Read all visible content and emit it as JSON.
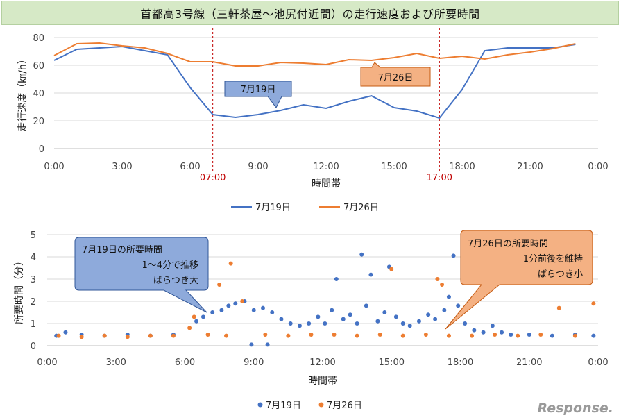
{
  "title": "首都高3号線（三軒茶屋〜池尻付近間）の走行速度および所要時間",
  "watermark": "Response.",
  "colors": {
    "jul19": "#4472c4",
    "jul26": "#ed7d31",
    "marker": "#c00000",
    "callout_blue": "#8eaadb",
    "callout_orange": "#f4b183"
  },
  "chart_data": [
    {
      "type": "line",
      "xlabel": "時間帯",
      "ylabel": "走行速度（㎞/h）",
      "ylim": [
        0,
        80
      ],
      "yticks": [
        "0",
        "20",
        "40",
        "60",
        "80"
      ],
      "xlim": [
        0,
        24
      ],
      "xticks": [
        "0:00",
        "3:00",
        "6:00",
        "9:00",
        "12:00",
        "15:00",
        "18:00",
        "21:00",
        "0:00"
      ],
      "grid": true,
      "legend": "bottom",
      "markers": [
        {
          "x": 7,
          "label": "07:00"
        },
        {
          "x": 17,
          "label": "17:00"
        }
      ],
      "x": [
        0,
        1,
        2,
        3,
        4,
        5,
        6,
        7,
        8,
        9,
        10,
        11,
        12,
        13,
        14,
        15,
        16,
        17,
        18,
        19,
        20,
        21,
        22,
        23
      ],
      "series": [
        {
          "name": "7月19日",
          "values": [
            63.5,
            71.5,
            72.5,
            73.5,
            70.5,
            67.5,
            44,
            24.5,
            22.5,
            24.5,
            27.5,
            31.5,
            29,
            34,
            38,
            29.5,
            27,
            22,
            42.5,
            70.5,
            72.5,
            72.5,
            72.5,
            75
          ]
        },
        {
          "name": "7月26日",
          "values": [
            67,
            75.5,
            76,
            74,
            72.5,
            68.5,
            62.5,
            62.5,
            59.5,
            59.5,
            62,
            61.5,
            60.5,
            64,
            63.5,
            65.5,
            68.5,
            65,
            66.5,
            64.5,
            67.5,
            69.5,
            72,
            75.5
          ]
        }
      ],
      "callouts": [
        {
          "text": "7月19日",
          "series": 0
        },
        {
          "text": "7月26日",
          "series": 1
        }
      ]
    },
    {
      "type": "scatter",
      "xlabel": "時間帯",
      "ylabel": "所要時間（分）",
      "ylim": [
        0,
        5
      ],
      "yticks": [
        "0",
        "1",
        "2",
        "3",
        "4",
        "5"
      ],
      "xlim": [
        0,
        24
      ],
      "xticks": [
        "0:00",
        "3:00",
        "6:00",
        "9:00",
        "12:00",
        "15:00",
        "18:00",
        "21:00",
        "0:00"
      ],
      "grid": true,
      "legend": "bottom",
      "series": [
        {
          "name": "7月19日",
          "points": [
            [
              0.4,
              0.45
            ],
            [
              0.8,
              0.6
            ],
            [
              1.5,
              0.5
            ],
            [
              2.5,
              0.45
            ],
            [
              3.5,
              0.5
            ],
            [
              4.5,
              0.45
            ],
            [
              5.5,
              0.5
            ],
            [
              6.5,
              1.1
            ],
            [
              6.8,
              1.3
            ],
            [
              7.2,
              1.5
            ],
            [
              7.6,
              1.6
            ],
            [
              7.9,
              1.8
            ],
            [
              8.2,
              1.9
            ],
            [
              8.6,
              2.0
            ],
            [
              8.9,
              0.05
            ],
            [
              9.0,
              1.6
            ],
            [
              9.4,
              1.7
            ],
            [
              9.6,
              0.05
            ],
            [
              9.8,
              1.5
            ],
            [
              10.2,
              1.2
            ],
            [
              10.6,
              1.0
            ],
            [
              11.0,
              0.9
            ],
            [
              11.4,
              1.0
            ],
            [
              11.8,
              1.3
            ],
            [
              12.1,
              1.0
            ],
            [
              12.4,
              1.6
            ],
            [
              12.6,
              3.0
            ],
            [
              12.9,
              1.2
            ],
            [
              13.2,
              1.4
            ],
            [
              13.5,
              1.0
            ],
            [
              13.7,
              4.1
            ],
            [
              13.9,
              1.8
            ],
            [
              14.1,
              3.2
            ],
            [
              14.4,
              1.1
            ],
            [
              14.7,
              1.5
            ],
            [
              14.9,
              3.55
            ],
            [
              15.2,
              1.3
            ],
            [
              15.5,
              1.0
            ],
            [
              15.8,
              0.9
            ],
            [
              16.2,
              1.1
            ],
            [
              16.6,
              1.4
            ],
            [
              16.9,
              1.2
            ],
            [
              17.3,
              1.6
            ],
            [
              17.5,
              2.2
            ],
            [
              17.7,
              4.05
            ],
            [
              17.9,
              1.8
            ],
            [
              18.2,
              1.0
            ],
            [
              18.6,
              0.7
            ],
            [
              19.0,
              0.6
            ],
            [
              19.4,
              0.9
            ],
            [
              19.8,
              0.6
            ],
            [
              20.2,
              0.5
            ],
            [
              21.0,
              0.5
            ],
            [
              22.0,
              0.45
            ],
            [
              23.0,
              0.5
            ],
            [
              23.8,
              0.45
            ]
          ]
        },
        {
          "name": "7月26日",
          "points": [
            [
              0.5,
              0.45
            ],
            [
              1.5,
              0.4
            ],
            [
              2.5,
              0.45
            ],
            [
              3.5,
              0.4
            ],
            [
              4.5,
              0.45
            ],
            [
              5.5,
              0.45
            ],
            [
              6.2,
              0.8
            ],
            [
              6.4,
              1.3
            ],
            [
              7.0,
              0.5
            ],
            [
              7.5,
              2.75
            ],
            [
              7.8,
              0.45
            ],
            [
              8.0,
              3.7
            ],
            [
              8.5,
              2.0
            ],
            [
              9.5,
              0.5
            ],
            [
              10.5,
              0.45
            ],
            [
              11.5,
              0.5
            ],
            [
              12.5,
              0.5
            ],
            [
              13.5,
              0.45
            ],
            [
              14.5,
              0.5
            ],
            [
              15.0,
              3.45
            ],
            [
              15.5,
              0.45
            ],
            [
              16.5,
              0.5
            ],
            [
              17.0,
              3.0
            ],
            [
              17.2,
              2.75
            ],
            [
              17.5,
              0.45
            ],
            [
              18.5,
              0.45
            ],
            [
              19.5,
              0.5
            ],
            [
              20.5,
              0.45
            ],
            [
              21.5,
              0.5
            ],
            [
              22.3,
              1.7
            ],
            [
              23.0,
              0.45
            ],
            [
              23.8,
              1.9
            ]
          ]
        }
      ],
      "callouts": [
        {
          "lines": [
            "7月19日の所要時間",
            "1〜4分で推移",
            "ばらつき大"
          ],
          "series": 0
        },
        {
          "lines": [
            "7月26日の所要時間",
            "1分前後を維持",
            "ばらつき小"
          ],
          "series": 1
        }
      ]
    }
  ]
}
